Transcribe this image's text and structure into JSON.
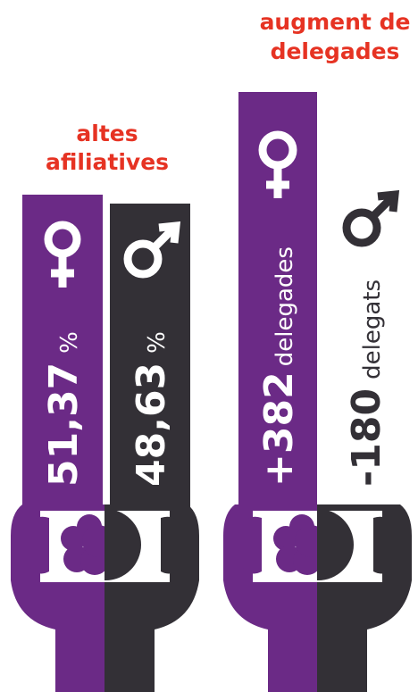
{
  "left_group": {
    "title": [
      "altes",
      "afiliatives"
    ],
    "women": {
      "value": "51,37",
      "unit": "%"
    },
    "men": {
      "value": "48,63",
      "unit": "%"
    }
  },
  "right_group": {
    "title": [
      "augment de",
      "delegades"
    ],
    "women": {
      "value": "+382",
      "unit": "delegades"
    },
    "men": {
      "value": "-180",
      "unit": "delegats"
    }
  }
}
